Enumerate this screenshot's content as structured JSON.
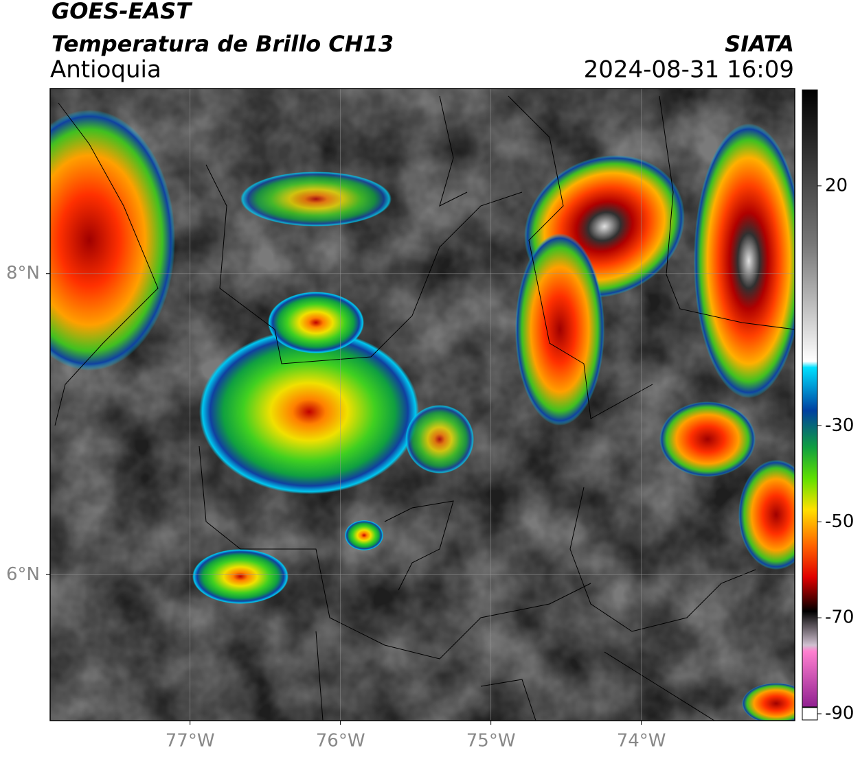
{
  "header": {
    "satellite": "GOES-EAST",
    "product": "Temperatura de Brillo CH13",
    "region": "Antioquia",
    "source": "SIATA",
    "datetime": "2024-08-31 16:09"
  },
  "map": {
    "lonlim": [
      -77.93,
      -72.98
    ],
    "latlim": [
      5.03,
      9.23
    ],
    "lon_ticks": [
      {
        "value": -77,
        "label": "77°W"
      },
      {
        "value": -76,
        "label": "76°W"
      },
      {
        "value": -75,
        "label": "75°W"
      },
      {
        "value": -74,
        "label": "74°W"
      }
    ],
    "lat_ticks": [
      {
        "value": 8,
        "label": "8°N"
      },
      {
        "value": 6,
        "label": "6°N"
      }
    ]
  },
  "colorbar": {
    "lim": [
      -90,
      40
    ],
    "ticks": [
      20,
      -30,
      -50,
      -70,
      -90
    ]
  }
}
